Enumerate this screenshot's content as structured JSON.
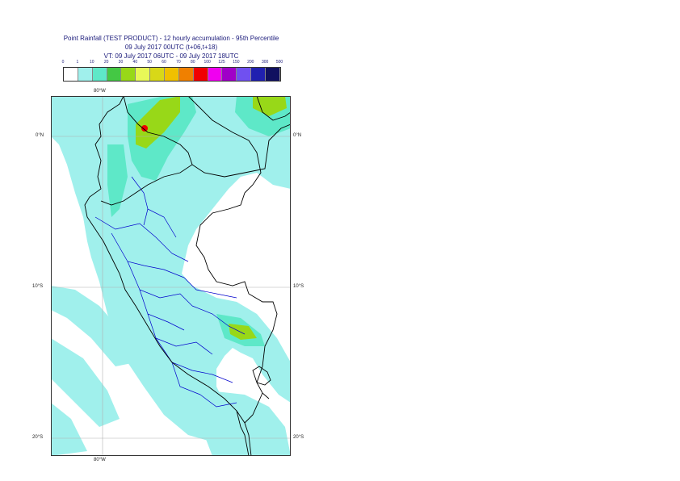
{
  "title": {
    "line1": "Point Rainfall (TEST PRODUCT) - 12 hourly accumulation - 95th Percentile",
    "line2": "09 July 2017 00UTC (t+06,t+18)",
    "line3": "VT: 09 July 2017 06UTC - 09 July 2017 18UTC"
  },
  "legend": {
    "labels": [
      "0",
      "1",
      "10",
      "20",
      "30",
      "40",
      "50",
      "60",
      "70",
      "80",
      "100",
      "125",
      "150",
      "200",
      "300",
      "500"
    ],
    "colors": [
      "#ffffff",
      "#a0f0ec",
      "#5ee8c8",
      "#44c844",
      "#98d818",
      "#e8f858",
      "#d8d818",
      "#f0c000",
      "#f08000",
      "#f00000",
      "#f000f0",
      "#a000c8",
      "#7050f0",
      "#2020b0",
      "#101060"
    ]
  },
  "map": {
    "colors": {
      "land_outline": "#000000",
      "admin_borders": "#0000cc",
      "gridlines": "#b0b0b0",
      "rain_light": "#a0f0ec",
      "rain_medium": "#5ee8c8",
      "rain_heavy": "#98d818",
      "rain_peak": "#f00000"
    },
    "lat_labels": [
      {
        "text": "0°N",
        "side": "left"
      },
      {
        "text": "0°N",
        "side": "right"
      },
      {
        "text": "10°S",
        "side": "left"
      },
      {
        "text": "10°S",
        "side": "right"
      },
      {
        "text": "20°S",
        "side": "left"
      },
      {
        "text": "20°S",
        "side": "right"
      }
    ],
    "lon_labels": [
      {
        "text": "80°W",
        "side": "top"
      },
      {
        "text": "80°W",
        "side": "bottom"
      }
    ]
  }
}
